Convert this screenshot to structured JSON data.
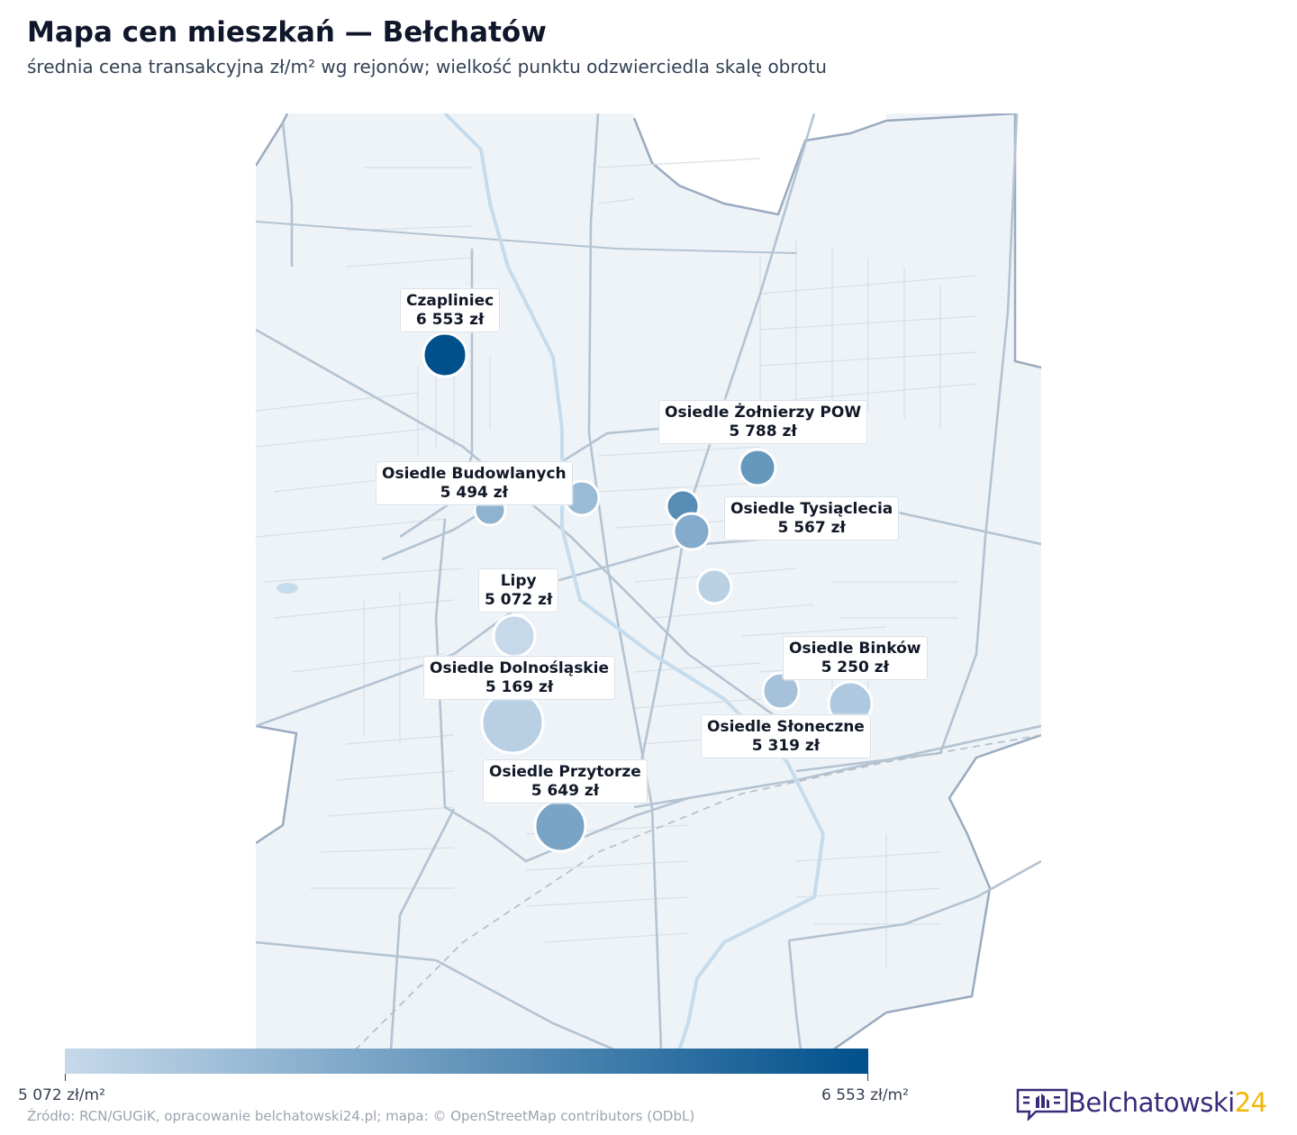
{
  "title": "Mapa cen mieszkań — Bełchatów",
  "subtitle": "średnia cena transakcyjna zł/m² wg rejonów; wielkość punktu odzwierciedla skalę obrotu",
  "map": {
    "districts": [
      {
        "name": "Czapliniec",
        "price": "6 553 zł",
        "value": 6553
      },
      {
        "name": "Osiedle Żołnierzy POW",
        "price": "5 788 zł",
        "value": 5788
      },
      {
        "name": "Osiedle Budowlanych",
        "price": "5 494 zł",
        "value": 5494
      },
      {
        "name": "Osiedle Tysiąclecia",
        "price": "5 567 zł",
        "value": 5567
      },
      {
        "name": "Lipy",
        "price": "5 072 zł",
        "value": 5072
      },
      {
        "name": "Osiedle Dolnośląskie",
        "price": "5 169 zł",
        "value": 5169
      },
      {
        "name": "Osiedle Binków",
        "price": "5 250 zł",
        "value": 5250
      },
      {
        "name": "Osiedle Słoneczne",
        "price": "5 319 zł",
        "value": 5319
      },
      {
        "name": "Osiedle Przytorze",
        "price": "5 649 zł",
        "value": 5649
      }
    ],
    "colors": {
      "low": "#c6d9ea",
      "high": "#00508c",
      "land": "#eef3f8",
      "road": "#c2cfdc",
      "river": "#c5dcec"
    }
  },
  "colorbar": {
    "min_label": "5 072 zł/m²",
    "max_label": "6 553 zł/m²",
    "min": 5072,
    "max": 6553
  },
  "source": "Źródło: RCN/GUGiK, opracowanie belchatowski24.pl; mapa: © OpenStreetMap contributors (ODbL)",
  "logo": {
    "word": "Belchatowski",
    "num": "24"
  }
}
